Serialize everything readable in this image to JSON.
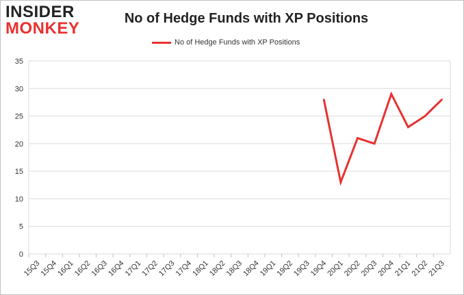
{
  "logo": {
    "line1": "INSIDER",
    "line2": "MONKEY"
  },
  "chart_data": {
    "type": "line",
    "title": "No of Hedge Funds with XP Positions",
    "xlabel": "",
    "ylabel": "",
    "ylim": [
      0,
      35
    ],
    "yticks": [
      0,
      5,
      10,
      15,
      20,
      25,
      30,
      35
    ],
    "grid": true,
    "legend_position": "top-center",
    "categories": [
      "15Q3",
      "15Q4",
      "16Q1",
      "16Q2",
      "16Q3",
      "16Q4",
      "17Q1",
      "17Q2",
      "17Q3",
      "17Q4",
      "18Q1",
      "18Q2",
      "18Q3",
      "18Q4",
      "19Q1",
      "19Q2",
      "19Q3",
      "19Q4",
      "20Q1",
      "20Q2",
      "20Q3",
      "20Q4",
      "21Q1",
      "21Q2",
      "21Q3"
    ],
    "series": [
      {
        "name": "No of Hedge Funds with XP Positions",
        "color": "#e8312f",
        "values": [
          null,
          null,
          null,
          null,
          null,
          null,
          null,
          null,
          null,
          null,
          null,
          null,
          null,
          null,
          null,
          null,
          null,
          28,
          13,
          21,
          20,
          29,
          23,
          25,
          28
        ]
      }
    ]
  }
}
